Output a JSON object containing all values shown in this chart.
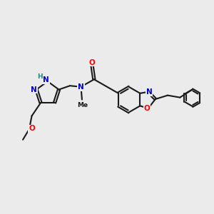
{
  "bg_color": "#ebebeb",
  "bond_color": "#1a1a1a",
  "bond_width": 1.5,
  "atom_colors": {
    "N": "#0000cc",
    "O": "#ff0000",
    "NH": "#2a8080",
    "C": "#1a1a1a"
  },
  "font_size_atom": 7.5,
  "font_size_small": 6.0
}
